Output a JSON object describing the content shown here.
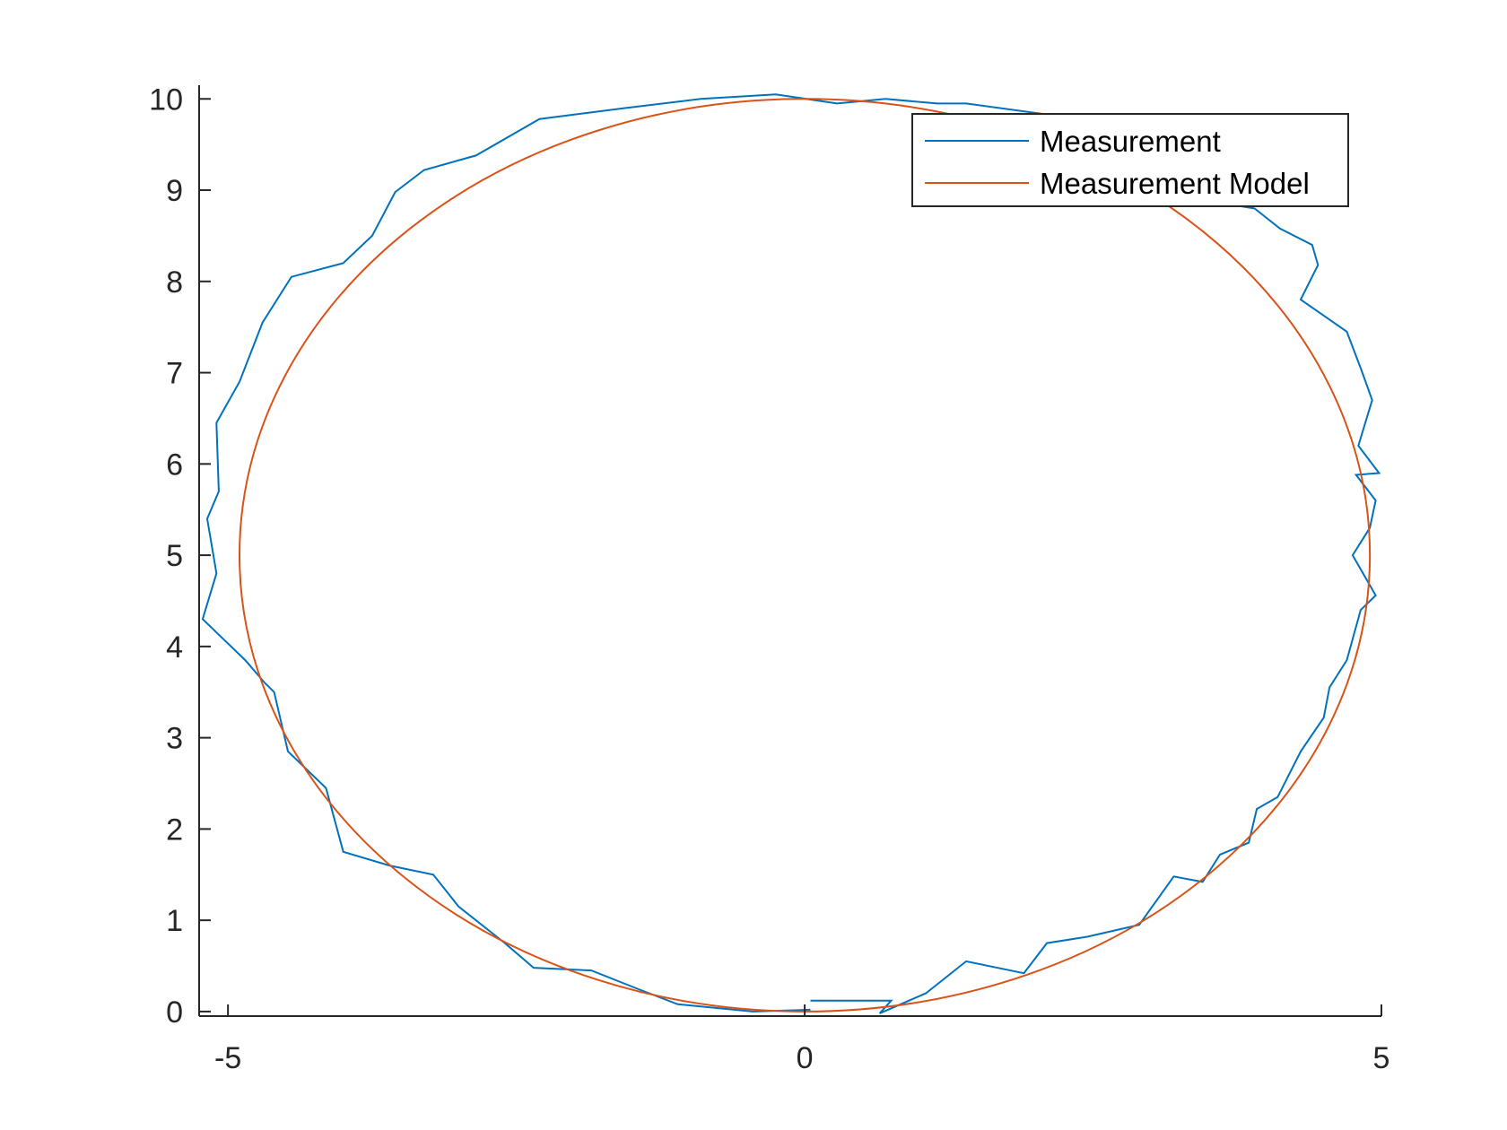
{
  "chart_data": {
    "type": "line",
    "title": "",
    "xlabel": "",
    "ylabel": "",
    "xlim": [
      -5.25,
      5
    ],
    "ylim": [
      -0.05,
      10.15
    ],
    "xticks": [
      -5,
      0,
      5
    ],
    "xtick_labels": [
      "-5",
      "0",
      "5"
    ],
    "yticks": [
      0,
      1,
      2,
      3,
      4,
      5,
      6,
      7,
      8,
      9,
      10
    ],
    "ytick_labels": [
      "0",
      "1",
      "2",
      "3",
      "4",
      "5",
      "6",
      "7",
      "8",
      "9",
      "10"
    ],
    "grid": false,
    "legend_position": "top-right",
    "series": [
      {
        "name": "Measurement",
        "color": "#0072BD",
        "kind": "noisy-measurement",
        "x": [
          0.05,
          0.75,
          0.65,
          1.05,
          1.4,
          1.9,
          2.1,
          2.45,
          2.9,
          3.2,
          3.45,
          3.6,
          3.85,
          3.92,
          4.1,
          4.3,
          4.5,
          4.55,
          4.7,
          4.82,
          4.95,
          4.75,
          4.9,
          4.95,
          4.78,
          4.98,
          4.8,
          4.92,
          4.82,
          4.7,
          4.3,
          4.45,
          4.4,
          4.12,
          3.9,
          3.5,
          3.15,
          2.85,
          1.4,
          1.15,
          0.7,
          0.28,
          -0.25,
          -0.9,
          -1.55,
          -2.3,
          -2.85,
          -3.3,
          -3.55,
          -3.75,
          -4.0,
          -4.45,
          -4.7,
          -4.9,
          -5.1,
          -5.08,
          -5.18,
          -5.1,
          -5.22,
          -4.85,
          -4.68,
          -4.6,
          -4.48,
          -4.15,
          -4.0,
          -3.6,
          -3.22,
          -3.0,
          -2.6,
          -2.35,
          -1.85,
          -1.45,
          -1.1,
          -0.45,
          0.05
        ],
        "y": [
          0.12,
          0.12,
          -0.02,
          0.2,
          0.55,
          0.42,
          0.75,
          0.82,
          0.95,
          1.48,
          1.42,
          1.72,
          1.85,
          2.22,
          2.35,
          2.85,
          3.22,
          3.55,
          3.85,
          4.4,
          4.56,
          5.0,
          5.3,
          5.6,
          5.88,
          5.9,
          6.2,
          6.7,
          7.05,
          7.45,
          7.8,
          8.18,
          8.4,
          8.58,
          8.8,
          8.88,
          9.35,
          9.7,
          9.95,
          9.95,
          10.0,
          9.95,
          10.05,
          10.0,
          9.9,
          9.78,
          9.38,
          9.22,
          8.98,
          8.5,
          8.2,
          8.05,
          7.55,
          6.9,
          6.45,
          5.7,
          5.4,
          4.8,
          4.3,
          3.85,
          3.6,
          3.5,
          2.85,
          2.45,
          1.75,
          1.6,
          1.5,
          1.15,
          0.75,
          0.48,
          0.45,
          0.25,
          0.08,
          0.0,
          0.02
        ]
      },
      {
        "name": "Measurement Model",
        "color": "#D95319",
        "kind": "ellipse",
        "center": [
          0,
          5
        ],
        "radii": [
          4.9,
          5
        ]
      }
    ]
  }
}
